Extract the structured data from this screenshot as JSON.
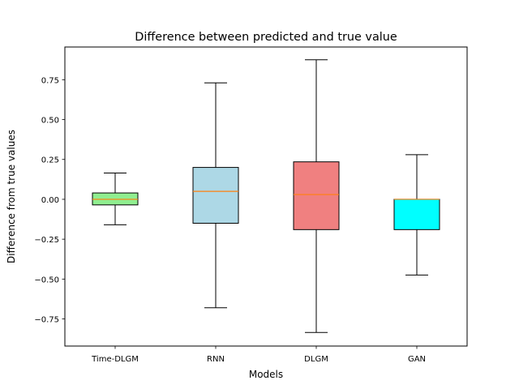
{
  "chart_data": {
    "type": "box",
    "title": "Difference between predicted and true value",
    "xlabel": "Models",
    "ylabel": "Difference from true values",
    "ylim": [
      -0.92,
      0.955
    ],
    "yticks": [
      -0.75,
      -0.5,
      -0.25,
      0.0,
      0.25,
      0.5,
      0.75
    ],
    "ytick_labels": [
      "−0.75",
      "−0.50",
      "−0.25",
      "0.00",
      "0.25",
      "0.50",
      "0.75"
    ],
    "grid": false,
    "median_color": "#ff7f0e",
    "categories": [
      "Time-DLGM",
      "RNN",
      "DLGM",
      "GAN"
    ],
    "boxes": [
      {
        "name": "Time-DLGM",
        "whisker_low": -0.16,
        "q1": -0.035,
        "median": 0.0,
        "q3": 0.04,
        "whisker_high": 0.165,
        "color": "#90ee90"
      },
      {
        "name": "RNN",
        "whisker_low": -0.68,
        "q1": -0.15,
        "median": 0.05,
        "q3": 0.2,
        "whisker_high": 0.73,
        "color": "#add8e6"
      },
      {
        "name": "DLGM",
        "whisker_low": -0.835,
        "q1": -0.19,
        "median": 0.03,
        "q3": 0.235,
        "whisker_high": 0.875,
        "color": "#f08080"
      },
      {
        "name": "GAN",
        "whisker_low": -0.475,
        "q1": -0.19,
        "median": 0.0,
        "q3": 0.0,
        "whisker_high": 0.28,
        "color": "#00ffff"
      }
    ]
  }
}
